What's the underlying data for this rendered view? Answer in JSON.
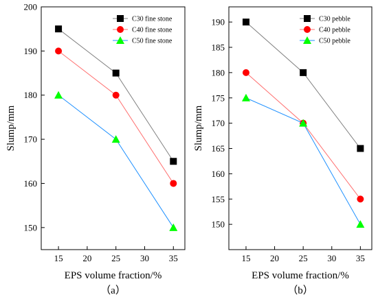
{
  "chart_data": [
    {
      "type": "line",
      "panel_caption": "（a）",
      "xlabel": "EPS volume fraction/%",
      "ylabel": "Slump/mm",
      "x": [
        15,
        25,
        35
      ],
      "xlim": [
        12,
        37
      ],
      "xticks": [
        15,
        20,
        25,
        30,
        35
      ],
      "ylim": [
        145,
        200
      ],
      "yticks": [
        150,
        160,
        170,
        180,
        190,
        200
      ],
      "grid": false,
      "legend_position": "top-right",
      "series": [
        {
          "name": "C30 fine stone",
          "values": [
            195,
            185,
            165
          ],
          "marker": "square",
          "color": "#000000",
          "line_color": "#808080"
        },
        {
          "name": "C40 fine stone",
          "values": [
            190,
            180,
            160
          ],
          "marker": "circle",
          "color": "#ff0000",
          "line_color": "#ff6f6f"
        },
        {
          "name": "C50 fine stone",
          "values": [
            180,
            170,
            150
          ],
          "marker": "triangle",
          "color": "#00ff00",
          "line_color": "#1e90ff"
        }
      ]
    },
    {
      "type": "line",
      "panel_caption": "（b）",
      "xlabel": "EPS volume fraction/%",
      "ylabel": "Slump/mm",
      "x": [
        15,
        25,
        35
      ],
      "xlim": [
        12,
        37
      ],
      "xticks": [
        15,
        20,
        25,
        30,
        35
      ],
      "ylim": [
        145,
        193
      ],
      "yticks": [
        150,
        155,
        160,
        165,
        170,
        175,
        180,
        185,
        190
      ],
      "grid": false,
      "legend_position": "top-right",
      "series": [
        {
          "name": "C30 pebble",
          "values": [
            190,
            180,
            165
          ],
          "marker": "square",
          "color": "#000000",
          "line_color": "#808080"
        },
        {
          "name": "C40 pebble",
          "values": [
            180,
            170,
            155
          ],
          "marker": "circle",
          "color": "#ff0000",
          "line_color": "#ff6f6f"
        },
        {
          "name": "C50 pebble",
          "values": [
            175,
            170,
            150
          ],
          "marker": "triangle",
          "color": "#00ff00",
          "line_color": "#1e90ff"
        }
      ]
    }
  ]
}
